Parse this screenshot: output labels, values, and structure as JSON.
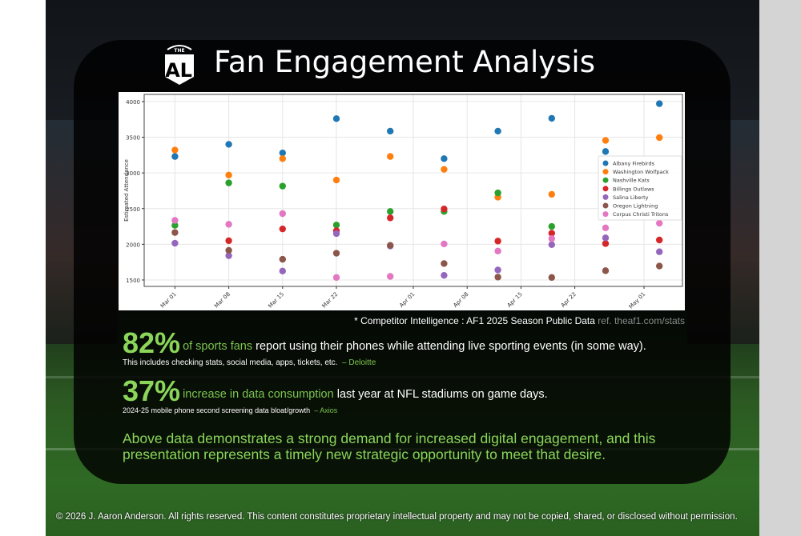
{
  "title": "Fan Engagement Analysis",
  "logo_text": "THE AL",
  "chart_data": {
    "type": "scatter",
    "ylabel": "Estimated Attendance",
    "xlabel": "",
    "ylim": [
      1410,
      4100
    ],
    "xlim": [
      "2025-02-25",
      "2025-05-06"
    ],
    "yticks": [
      1500,
      2000,
      2500,
      3000,
      3500,
      4000
    ],
    "xticks": [
      {
        "date": "2025-03-01",
        "label": "Mar 01"
      },
      {
        "date": "2025-03-08",
        "label": "Mar 08"
      },
      {
        "date": "2025-03-15",
        "label": "Mar 15"
      },
      {
        "date": "2025-03-22",
        "label": "Mar 22"
      },
      {
        "date": "2025-04-01",
        "label": "Apr 01"
      },
      {
        "date": "2025-04-08",
        "label": "Apr 08"
      },
      {
        "date": "2025-04-15",
        "label": "Apr 15"
      },
      {
        "date": "2025-04-22",
        "label": "Apr 22"
      },
      {
        "date": "2025-05-01",
        "label": "May 01"
      }
    ],
    "grid": true,
    "legend_position": "center-right",
    "x": [
      "2025-03-01",
      "2025-03-08",
      "2025-03-15",
      "2025-03-22",
      "2025-03-29",
      "2025-04-05",
      "2025-04-12",
      "2025-04-19",
      "2025-04-26",
      "2025-05-03"
    ],
    "series": [
      {
        "name": "Albany Firebirds",
        "color": "#1f77b4",
        "values": [
          3230,
          3400,
          3280,
          3760,
          3585,
          3200,
          3585,
          3765,
          3300,
          3970
        ]
      },
      {
        "name": "Washington Wolfpack",
        "color": "#ff7f0e",
        "values": [
          3320,
          2970,
          3200,
          2900,
          3230,
          3050,
          2660,
          2700,
          3455,
          3495
        ]
      },
      {
        "name": "Nashville Kats",
        "color": "#2ca02c",
        "values": [
          2265,
          2860,
          2815,
          2270,
          2460,
          2460,
          2720,
          2250,
          null,
          null
        ]
      },
      {
        "name": "Billings Outlaws",
        "color": "#d62728",
        "values": [
          null,
          2050,
          2215,
          2190,
          2370,
          2495,
          2045,
          2155,
          2010,
          2060
        ]
      },
      {
        "name": "Salina Liberty",
        "color": "#9467bd",
        "values": [
          2015,
          1840,
          1625,
          2150,
          1975,
          1565,
          1640,
          1995,
          2090,
          1895
        ]
      },
      {
        "name": "Oregon Lightning",
        "color": "#8c564b",
        "values": [
          2165,
          1915,
          1790,
          1875,
          1985,
          1730,
          1540,
          1535,
          1630,
          1695
        ]
      },
      {
        "name": "Corpus Christi Tritons",
        "color": "#e377c2",
        "values": [
          2335,
          2280,
          2430,
          1535,
          1550,
          2005,
          1905,
          2080,
          2230,
          2295
        ]
      }
    ]
  },
  "source_note": {
    "main": "* Competitor Intelligence : AF1 2025 Season Public Data",
    "ref": "ref. theaf1.com/stats"
  },
  "stats": [
    {
      "value": "82%",
      "highlight": "of sports fans",
      "text": " report using their phones while attending live sporting events (in some way).",
      "sub": "This includes checking stats, social media, apps, tickets, etc.",
      "source": "– Deloitte"
    },
    {
      "value": "37%",
      "highlight": "increase in data consumption",
      "text": " last year at NFL stadiums on game days.",
      "sub": "2024-25 mobile phone second screening data bloat/growth",
      "source": "– Axios"
    }
  ],
  "summary": "Above data demonstrates a strong demand for increased digital engagement, and this presentation represents a timely new strategic opportunity to meet that desire.",
  "footer": "© 2026 J. Aaron Anderson. All rights reserved. This content constitutes proprietary intellectual property and may not be copied, shared, or disclosed without permission.",
  "colors": {
    "accent": "#8bd65a"
  }
}
